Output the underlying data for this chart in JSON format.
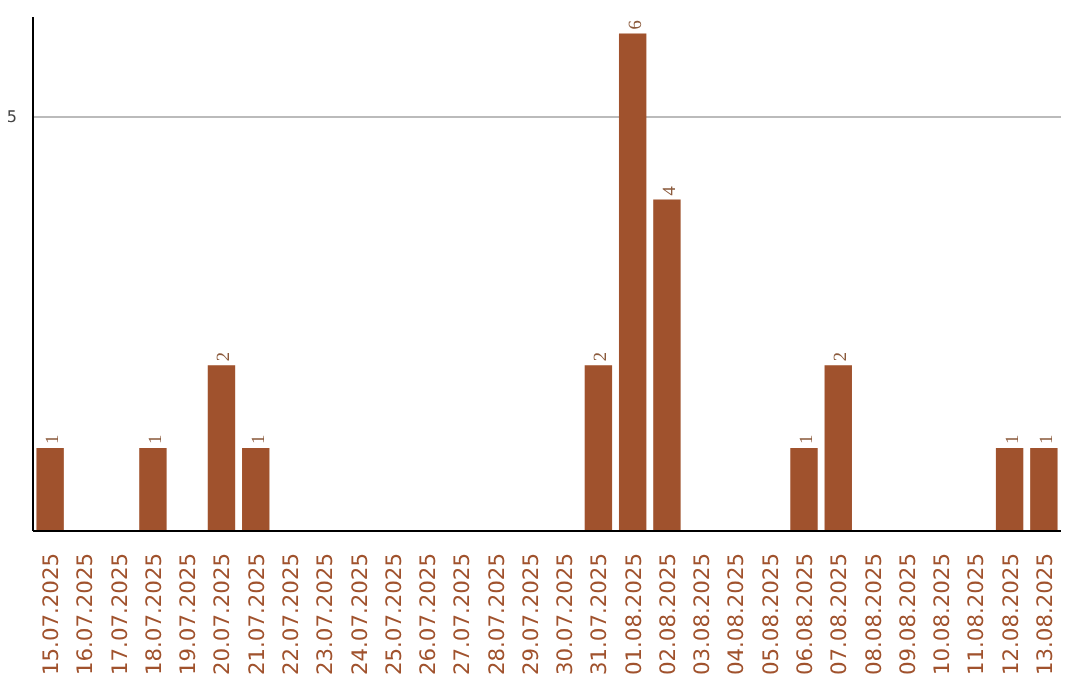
{
  "chart_data": {
    "type": "bar",
    "categories": [
      "15.07.2025",
      "16.07.2025",
      "17.07.2025",
      "18.07.2025",
      "19.07.2025",
      "20.07.2025",
      "21.07.2025",
      "22.07.2025",
      "23.07.2025",
      "24.07.2025",
      "25.07.2025",
      "26.07.2025",
      "27.07.2025",
      "28.07.2025",
      "29.07.2025",
      "30.07.2025",
      "31.07.2025",
      "01.08.2025",
      "02.08.2025",
      "03.08.2025",
      "04.08.2025",
      "05.08.2025",
      "06.08.2025",
      "07.08.2025",
      "08.08.2025",
      "09.08.2025",
      "10.08.2025",
      "11.08.2025",
      "12.08.2025",
      "13.08.2025"
    ],
    "values": [
      1,
      0,
      0,
      1,
      0,
      2,
      1,
      0,
      0,
      0,
      0,
      0,
      0,
      0,
      0,
      0,
      2,
      6,
      4,
      0,
      0,
      0,
      1,
      2,
      0,
      0,
      0,
      0,
      1,
      1
    ],
    "value_labels": [
      "1",
      null,
      null,
      "1",
      null,
      "2",
      "1",
      null,
      null,
      null,
      null,
      null,
      null,
      null,
      null,
      null,
      "2",
      "6",
      "4",
      null,
      null,
      null,
      "1",
      "2",
      null,
      null,
      null,
      null,
      "1",
      "1"
    ],
    "color": "#a0522d",
    "ylim": [
      0,
      6.2
    ],
    "yticks": [
      5
    ],
    "grid": "y"
  }
}
